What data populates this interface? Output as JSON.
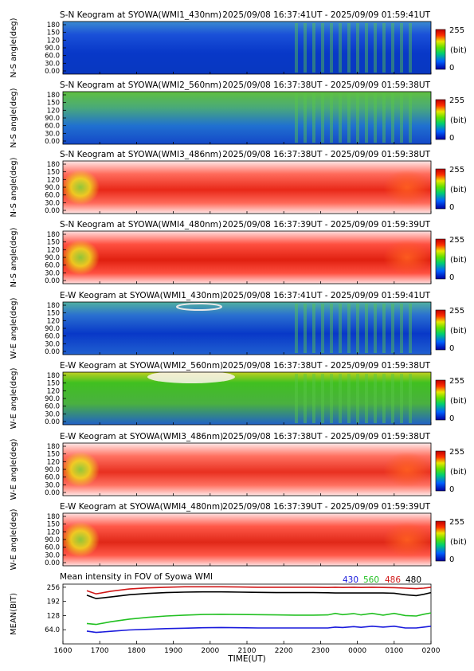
{
  "chart_data": [
    {
      "type": "heatmap",
      "title": "S-N Keogram at SYOWA(WMI1_430nm)",
      "time_range": "2025/09/08 16:37:41UT - 2025/09/09 01:59:41UT",
      "ylabel": "N-S angle(deg)",
      "yticks": [
        "0.00",
        "30.0",
        "60.0",
        "90.0",
        "120",
        "150",
        "180"
      ],
      "colorbar": {
        "max": "255",
        "unit": "(bit)",
        "min": "0"
      }
    },
    {
      "type": "heatmap",
      "title": "S-N Keogram at SYOWA(WMI2_560nm)",
      "time_range": "2025/09/08 16:37:38UT - 2025/09/09 01:59:38UT",
      "ylabel": "N-S angle(deg)",
      "yticks": [
        "0.00",
        "30.0",
        "60.0",
        "90.0",
        "120",
        "150",
        "180"
      ],
      "colorbar": {
        "max": "255",
        "unit": "(bit)",
        "min": "0"
      }
    },
    {
      "type": "heatmap",
      "title": "S-N Keogram at SYOWA(WMI3_486nm)",
      "time_range": "2025/09/08 16:37:38UT - 2025/09/09 01:59:38UT",
      "ylabel": "N-S angle(deg)",
      "yticks": [
        "0.00",
        "30.0",
        "60.0",
        "90.0",
        "120",
        "150",
        "180"
      ],
      "colorbar": {
        "max": "255",
        "unit": "(bit)",
        "min": "0"
      }
    },
    {
      "type": "heatmap",
      "title": "S-N Keogram at SYOWA(WMI4_480nm)",
      "time_range": "2025/09/08 16:37:39UT - 2025/09/09 01:59:39UT",
      "ylabel": "N-S angle(deg)",
      "yticks": [
        "0.00",
        "30.0",
        "60.0",
        "90.0",
        "120",
        "150",
        "180"
      ],
      "colorbar": {
        "max": "255",
        "unit": "(bit)",
        "min": "0"
      }
    },
    {
      "type": "heatmap",
      "title": "E-W Keogram at SYOWA(WMI1_430nm)",
      "time_range": "2025/09/08 16:37:41UT - 2025/09/09 01:59:41UT",
      "ylabel": "W-E angle(deg)",
      "yticks": [
        "0.00",
        "30.0",
        "60.0",
        "90.0",
        "120",
        "150",
        "180"
      ],
      "colorbar": {
        "max": "255",
        "unit": "(bit)",
        "min": "0"
      }
    },
    {
      "type": "heatmap",
      "title": "E-W Keogram at SYOWA(WMI2_560nm)",
      "time_range": "2025/09/08 16:37:38UT - 2025/09/09 01:59:38UT",
      "ylabel": "W-E angle(deg)",
      "yticks": [
        "0.00",
        "30.0",
        "60.0",
        "90.0",
        "120",
        "150",
        "180"
      ],
      "colorbar": {
        "max": "255",
        "unit": "(bit)",
        "min": "0"
      }
    },
    {
      "type": "heatmap",
      "title": "E-W Keogram at SYOWA(WMI3_486nm)",
      "time_range": "2025/09/08 16:37:38UT - 2025/09/09 01:59:38UT",
      "ylabel": "W-E angle(deg)",
      "yticks": [
        "0.00",
        "30.0",
        "60.0",
        "90.0",
        "120",
        "150",
        "180"
      ],
      "colorbar": {
        "max": "255",
        "unit": "(bit)",
        "min": "0"
      }
    },
    {
      "type": "heatmap",
      "title": "E-W Keogram at SYOWA(WMI4_480nm)",
      "time_range": "2025/09/08 16:37:39UT - 2025/09/09 01:59:39UT",
      "ylabel": "W-E angle(deg)",
      "yticks": [
        "0.00",
        "30.0",
        "60.0",
        "90.0",
        "120",
        "150",
        "180"
      ],
      "colorbar": {
        "max": "255",
        "unit": "(bit)",
        "min": "0"
      }
    },
    {
      "type": "line",
      "title": "Mean intensity in FOV of Syowa WMI",
      "xlabel": "TIME(UT)",
      "ylabel": "MEAN(BIT)",
      "x_ticks": [
        "1600",
        "1700",
        "1800",
        "1900",
        "2000",
        "2100",
        "2200",
        "2300",
        "0000",
        "0100",
        "0200"
      ],
      "y_ticks": [
        "64.0",
        "128",
        "192",
        "256"
      ],
      "ylim": [
        0,
        270
      ],
      "xlim": [
        16.0,
        26.0
      ],
      "x": [
        16.65,
        16.9,
        17.3,
        17.8,
        18.3,
        18.8,
        19.3,
        19.8,
        20.3,
        20.8,
        21.3,
        21.8,
        22.3,
        22.8,
        23.2,
        23.4,
        23.6,
        23.9,
        24.1,
        24.4,
        24.7,
        25.0,
        25.3,
        25.6,
        25.8,
        26.0
      ],
      "series": [
        {
          "name": "430",
          "color": "#1a1adc",
          "values": [
            58,
            52,
            57,
            63,
            66,
            69,
            71,
            73,
            74,
            73,
            72,
            72,
            72,
            72,
            72,
            76,
            74,
            78,
            75,
            80,
            76,
            80,
            72,
            72,
            76,
            80
          ]
        },
        {
          "name": "560",
          "color": "#22c022",
          "values": [
            92,
            88,
            100,
            112,
            120,
            126,
            130,
            133,
            134,
            133,
            132,
            131,
            130,
            130,
            131,
            138,
            132,
            137,
            131,
            138,
            130,
            138,
            128,
            126,
            134,
            140
          ]
        },
        {
          "name": "486",
          "color": "#d01818",
          "values": [
            240,
            226,
            238,
            248,
            253,
            256,
            258,
            258,
            258,
            257,
            256,
            256,
            256,
            256,
            255,
            256,
            255,
            256,
            255,
            256,
            255,
            254,
            252,
            250,
            252,
            256
          ]
        },
        {
          "name": "480",
          "color": "#000000",
          "values": [
            220,
            205,
            212,
            222,
            228,
            232,
            234,
            235,
            235,
            234,
            233,
            232,
            232,
            232,
            231,
            230,
            230,
            230,
            230,
            230,
            230,
            229,
            222,
            218,
            224,
            232
          ]
        }
      ]
    }
  ]
}
